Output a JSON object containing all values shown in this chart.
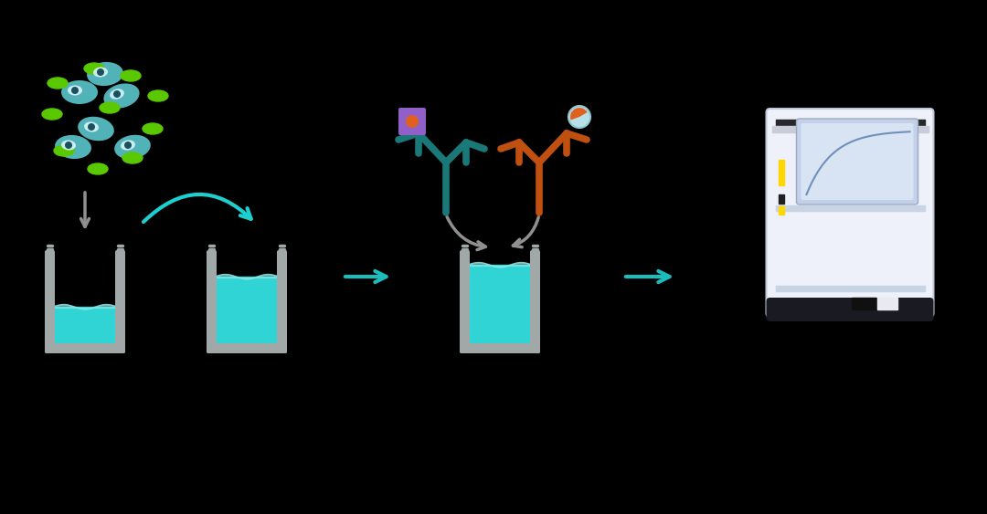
{
  "bg_color": "#000000",
  "teal": "#1DCFCF",
  "teal_cell": "#5BC8CC",
  "teal_dark": "#1A9090",
  "teal_ab": "#1A7878",
  "green": "#5AC800",
  "gray": "#909090",
  "gray_light": "#B8B8B8",
  "orange_ab": "#C05010",
  "purple_tag": "#9060C8",
  "orange_dot": "#E06020",
  "cell_white": "#D8F4F8",
  "well_fill": "#30D4D4",
  "well_fill2": "#20C8C8",
  "well_border": "#A0A8A8",
  "reader_bg": "#EEF0FA",
  "reader_top": "#C8CCD8",
  "reader_bar": "#28282A",
  "reader_screen": "#C4D0E8",
  "reader_screen_inner": "#D8E4F4",
  "reader_bottom": "#1A1A22",
  "yellow": "#FFD700",
  "black_btn": "#101010",
  "white_btn": "#E8EAF0",
  "arrow_teal": "#1ABCBC",
  "wave_white": "#90E8E8"
}
